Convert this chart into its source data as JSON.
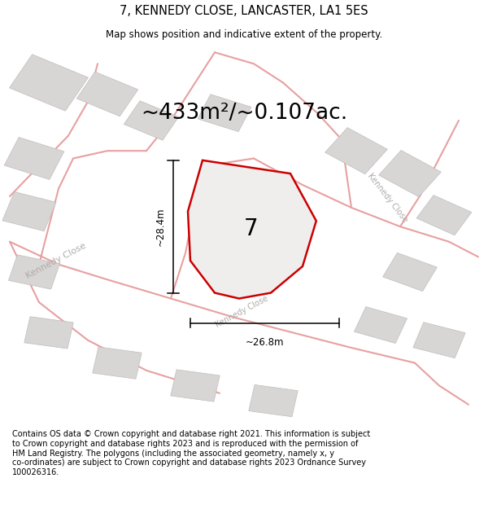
{
  "title": "7, KENNEDY CLOSE, LANCASTER, LA1 5ES",
  "subtitle": "Map shows position and indicative extent of the property.",
  "area_text": "~433m²/~0.107ac.",
  "label_number": "7",
  "dim_height": "~28.4m",
  "dim_width": "~26.8m",
  "footer_lines": [
    "Contains OS data © Crown copyright and database right 2021. This information is subject",
    "to Crown copyright and database rights 2023 and is reproduced with the permission of",
    "HM Land Registry. The polygons (including the associated geometry, namely x, y",
    "co-ordinates) are subject to Crown copyright and database rights 2023 Ordnance Survey",
    "100026316."
  ],
  "map_bg": "#ffffff",
  "title_bg": "#ffffff",
  "footer_bg": "#ffffff",
  "road_color": "#e8a0a0",
  "building_fill": "#d8d5d5",
  "building_edge": "#c0bcbc",
  "plot_fill": "#f0eeed",
  "plot_edge_color": "#cc0000",
  "dim_line_color": "#000000",
  "street_label_color": "#b0abab",
  "title_fontsize": 10.5,
  "subtitle_fontsize": 8.5,
  "area_fontsize": 19,
  "label_fontsize": 20,
  "footer_fontsize": 7.0,
  "dim_fontsize": 8.5,
  "street_fontsize": 8.0
}
